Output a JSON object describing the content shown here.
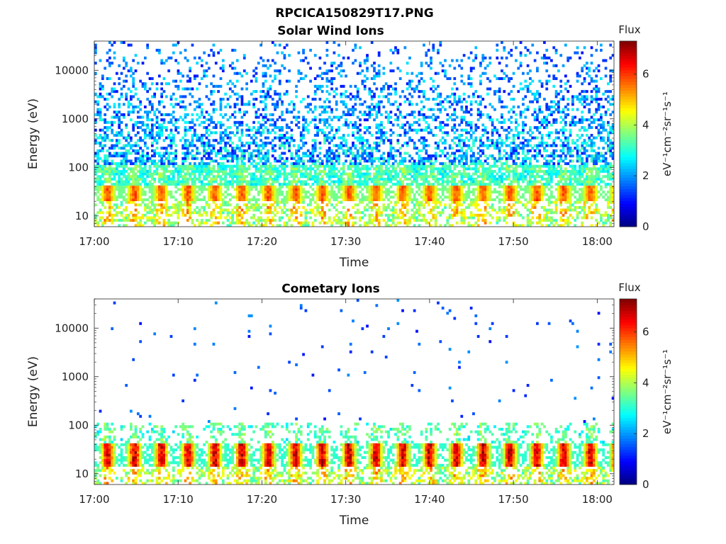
{
  "figure_title": "RPCICA150829T17.PNG",
  "chart_data": [
    {
      "type": "heatmap",
      "title": "Solar Wind Ions",
      "xlabel": "Time",
      "ylabel": "Energy (eV)",
      "x_ticks": [
        "17:00",
        "17:10",
        "17:20",
        "17:30",
        "17:40",
        "17:50",
        "18:00"
      ],
      "x_range": [
        "17:00",
        "18:02"
      ],
      "y_scale": "log",
      "y_ticks": [
        10,
        100,
        1000,
        10000
      ],
      "y_tick_labels": [
        "10",
        "100",
        "1000",
        "10000"
      ],
      "y_range": [
        6,
        40000
      ],
      "colorbar": {
        "title": "Flux",
        "label": "eV⁻¹cm⁻²sr⁻¹s⁻¹",
        "ticks": [
          0,
          2,
          4,
          6
        ],
        "range": [
          0,
          7.3
        ],
        "colormap": "jet"
      },
      "features": {
        "peak_band_eV": [
          20,
          45
        ],
        "peak_log_flux": 6.0,
        "background_log_flux": [
          1.0,
          3.5
        ],
        "pulse_period_min": 3.2,
        "noise_density": "high"
      }
    },
    {
      "type": "heatmap",
      "title": "Cometary Ions",
      "xlabel": "Time",
      "ylabel": "Energy (eV)",
      "x_ticks": [
        "17:00",
        "17:10",
        "17:20",
        "17:30",
        "17:40",
        "17:50",
        "18:00"
      ],
      "x_range": [
        "17:00",
        "18:02"
      ],
      "y_scale": "log",
      "y_ticks": [
        10,
        100,
        1000,
        10000
      ],
      "y_tick_labels": [
        "10",
        "100",
        "1000",
        "10000"
      ],
      "y_range": [
        6,
        40000
      ],
      "colorbar": {
        "title": "Flux",
        "label": "eV⁻¹cm⁻²sr⁻¹s⁻¹",
        "ticks": [
          0,
          2,
          4,
          6
        ],
        "range": [
          0,
          7.3
        ],
        "colormap": "jet"
      },
      "features": {
        "peak_band_eV": [
          15,
          45
        ],
        "peak_log_flux": 7.0,
        "background_log_flux": [
          1.0,
          3.0
        ],
        "pulse_period_min": 3.2,
        "noise_density": "sparse"
      }
    }
  ]
}
